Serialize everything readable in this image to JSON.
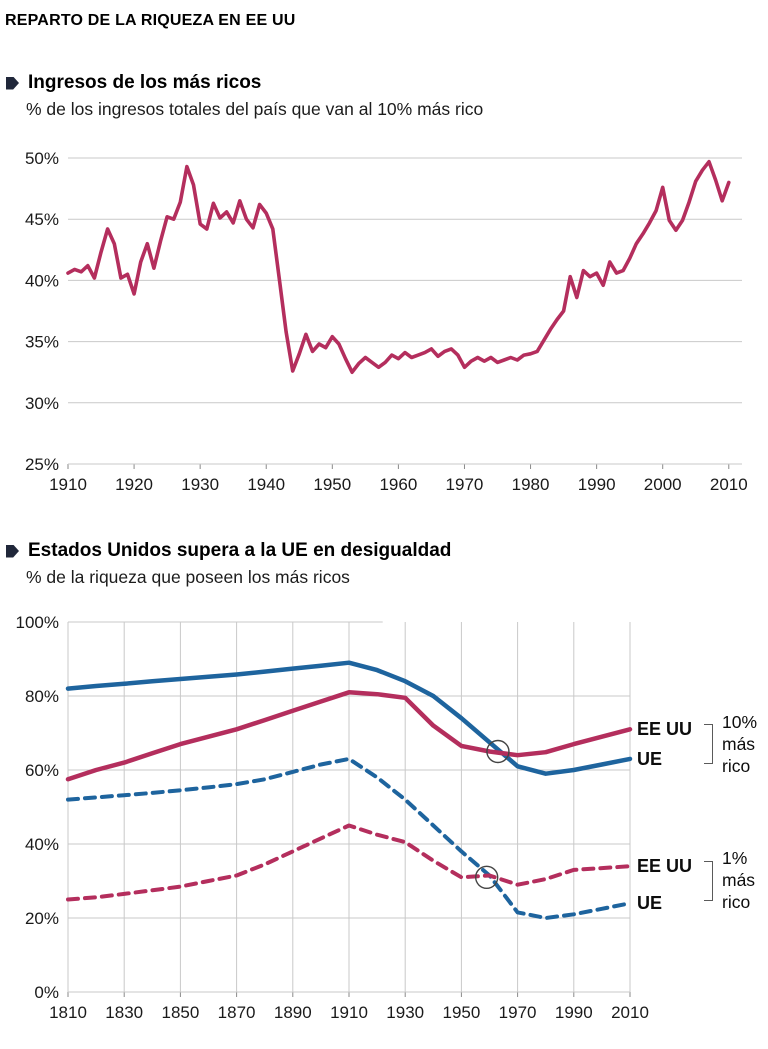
{
  "page": {
    "title": "REPARTO DE LA RIQUEZA EN EE UU"
  },
  "colors": {
    "crimson": "#b42e5d",
    "blue": "#1e649e",
    "grid": "#c9c9c9",
    "axis": "#8a8a8a",
    "text": "#1a1a1a"
  },
  "sections": [
    {
      "title": "Ingresos de los más ricos",
      "subtitle": "% de los ingresos totales del país que van al 10% más rico"
    },
    {
      "title": "Estados Unidos supera a la UE en desigualdad",
      "subtitle": "% de la riqueza que poseen los más ricos"
    }
  ],
  "legend": {
    "group10": {
      "us": "EE UU",
      "eu": "UE",
      "label": "10%\nmás\nrico"
    },
    "group1": {
      "us": "EE UU",
      "eu": "UE",
      "label": "1%\nmás\nrico"
    }
  },
  "chart_data": [
    {
      "type": "line",
      "title": "Ingresos de los más ricos",
      "subtitle": "% de los ingresos totales del país que van al 10% más rico",
      "x_years": {
        "start": 1910,
        "end": 2010,
        "step": 1
      },
      "xlim": [
        1910,
        2012
      ],
      "ylim": [
        25,
        50
      ],
      "yticks": [
        25,
        30,
        35,
        40,
        45,
        50
      ],
      "xticks": [
        1910,
        1920,
        1930,
        1940,
        1950,
        1960,
        1970,
        1980,
        1990,
        2000,
        2010
      ],
      "ytick_suffix": "%",
      "grid": "horizontal",
      "series": [
        {
          "id": "top10-income-us",
          "name": "10% más rico (EE UU)",
          "color_key": "crimson",
          "width": 3.6,
          "dash": false,
          "values": [
            40.6,
            40.9,
            40.7,
            41.2,
            40.2,
            42.3,
            44.2,
            43.0,
            40.2,
            40.5,
            38.9,
            41.5,
            43.0,
            41.0,
            43.2,
            45.2,
            45.0,
            46.4,
            49.3,
            47.8,
            44.6,
            44.2,
            46.3,
            45.1,
            45.6,
            44.7,
            46.5,
            45.0,
            44.3,
            46.2,
            45.5,
            44.2,
            40.0,
            35.8,
            32.6,
            34.0,
            35.6,
            34.2,
            34.8,
            34.5,
            35.4,
            34.8,
            33.6,
            32.5,
            33.2,
            33.7,
            33.3,
            32.9,
            33.3,
            33.9,
            33.6,
            34.1,
            33.7,
            33.9,
            34.1,
            34.4,
            33.8,
            34.2,
            34.4,
            33.9,
            32.9,
            33.4,
            33.7,
            33.4,
            33.7,
            33.3,
            33.5,
            33.7,
            33.5,
            33.9,
            34.0,
            34.2,
            35.1,
            36.0,
            36.8,
            37.5,
            40.3,
            38.6,
            40.8,
            40.3,
            40.6,
            39.6,
            41.5,
            40.6,
            40.8,
            41.8,
            43.0,
            43.8,
            44.7,
            45.7,
            47.6,
            44.9,
            44.1,
            44.9,
            46.4,
            48.1,
            49.0,
            49.7,
            48.2,
            46.5,
            48.0
          ]
        }
      ]
    },
    {
      "type": "line",
      "title": "Estados Unidos supera a la UE en desigualdad",
      "subtitle": "% de la riqueza que poseen los más ricos",
      "x": [
        1810,
        1820,
        1830,
        1840,
        1850,
        1860,
        1870,
        1880,
        1890,
        1900,
        1910,
        1920,
        1930,
        1940,
        1950,
        1960,
        1970,
        1980,
        1990,
        2000,
        2010
      ],
      "xlim": [
        1810,
        2010
      ],
      "ylim": [
        0,
        100
      ],
      "yticks": [
        0,
        20,
        40,
        60,
        80,
        100
      ],
      "xticks": [
        1810,
        1830,
        1850,
        1870,
        1890,
        1910,
        1930,
        1950,
        1970,
        1990,
        2010
      ],
      "ytick_suffix": "%",
      "grid": "both",
      "top_gridline_end": 1922,
      "series": [
        {
          "id": "top10-wealth-ue",
          "name": "UE 10% más rico",
          "color_key": "blue",
          "width": 4.5,
          "dash": false,
          "values": [
            82,
            82.7,
            83.3,
            84,
            84.6,
            85.2,
            85.8,
            86.6,
            87.4,
            88.2,
            89,
            87,
            84,
            80,
            74,
            67.5,
            61,
            59,
            60,
            61.5,
            63
          ]
        },
        {
          "id": "top10-wealth-eeuu",
          "name": "EE UU 10% más rico",
          "color_key": "crimson",
          "width": 4.5,
          "dash": false,
          "values": [
            57.5,
            60,
            62,
            64.5,
            67,
            69,
            71,
            73.5,
            76,
            78.5,
            81,
            80.5,
            79.5,
            72,
            66.5,
            65,
            64,
            64.8,
            67,
            69,
            71
          ]
        },
        {
          "id": "top1-wealth-ue",
          "name": "UE 1% más rico",
          "color_key": "blue",
          "width": 4,
          "dash": true,
          "values": [
            52,
            52.6,
            53.2,
            53.8,
            54.5,
            55.3,
            56.2,
            57.5,
            59.5,
            61.5,
            63,
            58,
            52,
            45,
            38,
            31.5,
            21.5,
            20,
            21,
            22.5,
            24
          ]
        },
        {
          "id": "top1-wealth-eeuu",
          "name": "EE UU 1% más rico",
          "color_key": "crimson",
          "width": 4,
          "dash": true,
          "values": [
            25,
            25.6,
            26.5,
            27.5,
            28.5,
            30,
            31.5,
            34.5,
            38,
            41.5,
            45,
            42.5,
            40.5,
            35.5,
            31,
            31.5,
            29,
            30.5,
            33,
            33.5,
            34
          ]
        }
      ],
      "annotations": [
        {
          "type": "circle",
          "x": 1963,
          "y": 65,
          "r": 11
        },
        {
          "type": "circle",
          "x": 1959,
          "y": 31,
          "r": 11
        }
      ]
    }
  ]
}
